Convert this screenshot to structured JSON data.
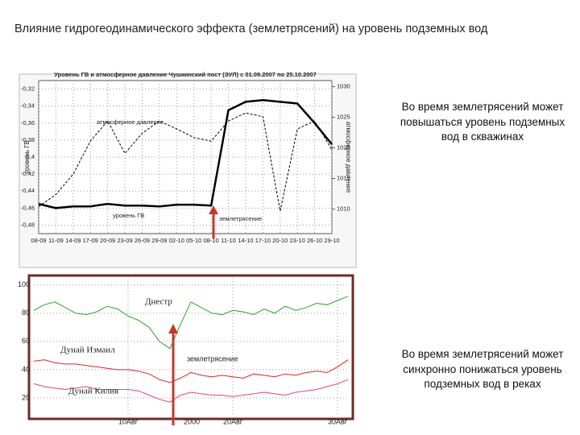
{
  "title": "Влияние гидрогеодинамического эффекта (землетрясений) на уровень подземных вод",
  "notes": [
    "Во время землетрясений может повышаться уровень подземных вод в скважинах",
    "Во время землетрясений может синхронно понижаться уровень подземных вод в реках"
  ],
  "chart_data": [
    {
      "type": "line",
      "title": "Уровень ГВ и атмосферное давление Чушкинский пост (ЭУЛ) с 01.09.2007 по 25.10.2007",
      "y_label": "уровень ГВ",
      "y2_label": "атмосферное давление",
      "annotations": [
        "землетрясение"
      ],
      "categories": [
        "08-09",
        "11-09",
        "14-09",
        "17-09",
        "20-09",
        "23-09",
        "26-09",
        "29-09",
        "02-10",
        "05-10",
        "08-10",
        "11-10",
        "14-10",
        "17-10",
        "20-10",
        "23-10",
        "26-10",
        "29-10"
      ],
      "ylim": [
        -0.49,
        -0.31
      ],
      "yticks": [
        {
          "value": -0.32,
          "label": "-0,32"
        },
        {
          "value": -0.34,
          "label": "-0,34"
        },
        {
          "value": -0.36,
          "label": "-0,36"
        },
        {
          "value": -0.38,
          "label": "-0,38"
        },
        {
          "value": -0.4,
          "label": "-0,4"
        },
        {
          "value": -0.42,
          "label": "-0,42"
        },
        {
          "value": -0.44,
          "label": "-0,44"
        },
        {
          "value": -0.46,
          "label": "-0,46"
        },
        {
          "value": -0.48,
          "label": "-0,48"
        }
      ],
      "y2lim": [
        1006,
        1031
      ],
      "y2ticks": [
        1010,
        1015,
        1020,
        1025,
        1030
      ],
      "grid": true,
      "series": [
        {
          "name": "уровень ГВ",
          "color": "#000000",
          "width": 2.5,
          "values": [
            -0.455,
            -0.46,
            -0.458,
            -0.458,
            -0.455,
            -0.457,
            -0.457,
            -0.458,
            -0.456,
            -0.456,
            -0.457,
            -0.345,
            -0.335,
            -0.333,
            -0.335,
            -0.337,
            -0.36,
            -0.385
          ]
        },
        {
          "name": "атмосферное давление",
          "color": "#000000",
          "width": 1,
          "dash": true,
          "axis": "y2",
          "values": [
            1010.4,
            1012.4,
            1015.7,
            1021.1,
            1024.4,
            1019.1,
            1022.4,
            1024.4,
            1023.1,
            1021.7,
            1021.1,
            1024.4,
            1025.7,
            1025.1,
            1009.7,
            1023.1,
            1024.4,
            1019.7
          ]
        }
      ]
    },
    {
      "type": "line",
      "x_label": "2000",
      "annotations": [
        "землетрясение"
      ],
      "categories": [
        null,
        null,
        null,
        null,
        null,
        null,
        null,
        null,
        null,
        "10Авг",
        null,
        null,
        null,
        null,
        null,
        null,
        null,
        null,
        null,
        "20Авг",
        null,
        null,
        null,
        null,
        null,
        null,
        null,
        null,
        null,
        "30Авг",
        null
      ],
      "ylim": [
        8,
        105
      ],
      "yticks": [
        20,
        40,
        60,
        80,
        100
      ],
      "grid": true,
      "series": [
        {
          "name": "Днестр",
          "color": "#2ca02c",
          "width": 1,
          "values": [
            82,
            86,
            88,
            84,
            80,
            79,
            81,
            85,
            83,
            78,
            75,
            70,
            60,
            55,
            72,
            88,
            84,
            80,
            79,
            82,
            81,
            79,
            83,
            80,
            85,
            82,
            84,
            87,
            86,
            89,
            92
          ]
        },
        {
          "name": "Дунай Измаил",
          "color": "#d62728",
          "width": 1,
          "values": [
            46,
            47,
            45,
            44,
            44,
            43,
            42,
            41,
            40,
            40,
            39,
            37,
            33,
            31,
            34,
            38,
            36,
            35,
            36,
            35,
            34,
            37,
            36,
            35,
            37,
            36,
            38,
            39,
            38,
            42,
            47
          ]
        },
        {
          "name": "Дунай Килия",
          "color": "#e0457b",
          "width": 1,
          "values": [
            30,
            28,
            27,
            26,
            27,
            28,
            26,
            26,
            26,
            26,
            25,
            22,
            19,
            17,
            22,
            24,
            23,
            22,
            22,
            21,
            22,
            23,
            24,
            23,
            22,
            24,
            25,
            26,
            28,
            30,
            33
          ]
        }
      ]
    }
  ]
}
